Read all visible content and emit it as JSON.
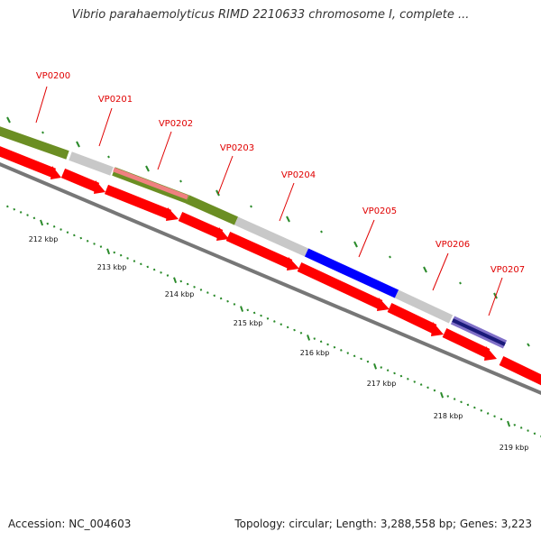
{
  "title": "Vibrio parahaemolyticus RIMD 2210633 chromosome I, complete ...",
  "footer": {
    "accession": "Accession: NC_004603",
    "info": "Topology: circular; Length: 3,288,558 bp; Genes: 3,223"
  },
  "colors": {
    "gene_label": "#e00000",
    "cds_forward": "#ff0000",
    "backbone": "#777777",
    "tick": "#2a8a2a",
    "feature_green": "#6b8e23",
    "feature_gray": "#c8c8c8",
    "feature_blue": "#0000ff",
    "feature_pink": "#f08080",
    "feature_navy": "#1a1a7a",
    "feature_purple": "#8070c8"
  },
  "map": {
    "genes": [
      "VP0200",
      "VP0201",
      "VP0202",
      "VP0203",
      "VP0204",
      "VP0205",
      "VP0206",
      "VP0207"
    ],
    "kbp_labels": [
      "212 kbp",
      "213 kbp",
      "214 kbp",
      "215 kbp",
      "216 kbp",
      "217 kbp",
      "218 kbp",
      "219 kbp"
    ]
  }
}
